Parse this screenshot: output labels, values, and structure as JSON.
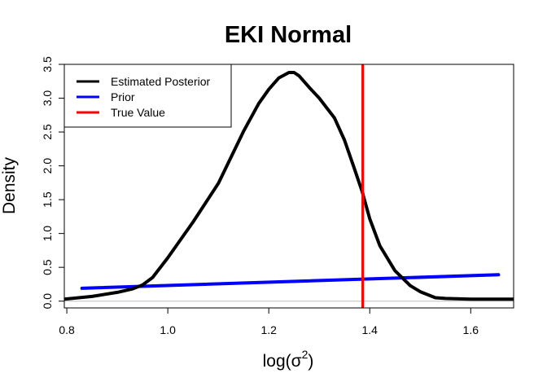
{
  "chart_data": {
    "type": "line",
    "title": "EKI Normal",
    "xlabel": "log(σ²)",
    "xlabel_base": "log(σ",
    "xlabel_sup": "2",
    "xlabel_close": ")",
    "ylabel": "Density",
    "xlim": [
      0.795,
      1.685
    ],
    "ylim": [
      -0.1,
      3.5
    ],
    "x_ticks": [
      0.8,
      1.0,
      1.2,
      1.4,
      1.6
    ],
    "x_tick_labels": [
      "0.8",
      "1.0",
      "1.2",
      "1.4",
      "1.6"
    ],
    "y_ticks": [
      0.0,
      0.5,
      1.0,
      1.5,
      2.0,
      2.5,
      3.0,
      3.5
    ],
    "y_tick_labels": [
      "0.0",
      "0.5",
      "1.0",
      "1.5",
      "2.0",
      "2.5",
      "3.0",
      "3.5"
    ],
    "grid": false,
    "legend_position": "top-left",
    "zero_line": {
      "y": 0,
      "color": "#bebebe"
    },
    "series": [
      {
        "name": "Estimated Posterior",
        "color": "#000000",
        "x": [
          0.795,
          0.85,
          0.9,
          0.93,
          0.95,
          0.97,
          1.0,
          1.05,
          1.1,
          1.15,
          1.18,
          1.2,
          1.22,
          1.24,
          1.25,
          1.26,
          1.28,
          1.3,
          1.33,
          1.35,
          1.37,
          1.385,
          1.4,
          1.42,
          1.45,
          1.48,
          1.5,
          1.53,
          1.55,
          1.6,
          1.685
        ],
        "y": [
          0.03,
          0.07,
          0.13,
          0.18,
          0.24,
          0.35,
          0.64,
          1.17,
          1.74,
          2.51,
          2.92,
          3.13,
          3.3,
          3.38,
          3.38,
          3.33,
          3.16,
          3.0,
          2.71,
          2.38,
          1.95,
          1.62,
          1.22,
          0.82,
          0.45,
          0.23,
          0.14,
          0.05,
          0.04,
          0.03,
          0.03
        ]
      },
      {
        "name": "Prior",
        "color": "#0000ff",
        "x": [
          0.83,
          1.655
        ],
        "y": [
          0.19,
          0.39
        ]
      }
    ],
    "vlines": [
      {
        "name": "True Value",
        "x": 1.386,
        "color": "#ff0000"
      }
    ],
    "legend": [
      {
        "label": "Estimated Posterior",
        "color": "#000000"
      },
      {
        "label": "Prior",
        "color": "#0000ff"
      },
      {
        "label": "True Value",
        "color": "#ff0000"
      }
    ]
  }
}
